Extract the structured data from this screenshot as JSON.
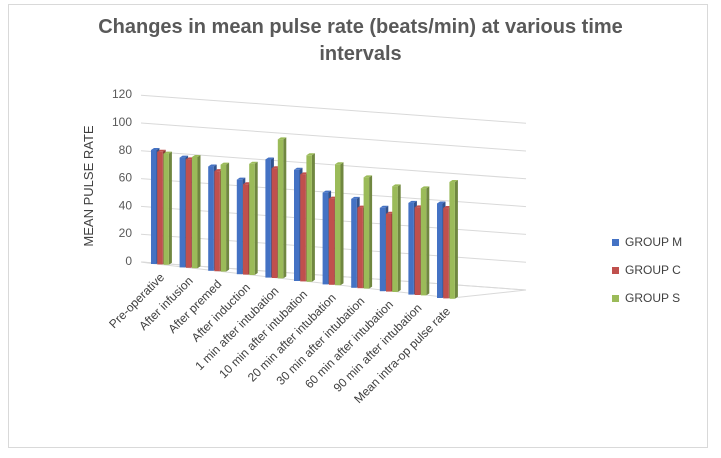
{
  "chart_data": {
    "type": "bar",
    "title_lines": [
      "Changes in mean pulse rate (beats/min) at various time",
      "intervals"
    ],
    "xlabel": "",
    "ylabel": "MEAN PULSE RATE",
    "ylim": [
      0,
      120
    ],
    "yticks": [
      "0",
      "20",
      "40",
      "60",
      "80",
      "100",
      "120"
    ],
    "grid": true,
    "legend_position": "right",
    "categories": [
      "Pre-operative",
      "After infusion",
      "After premed",
      "After induction",
      "1 min after intubation",
      "10 min after intubation",
      "20 min after intubation",
      "30 min after intubation",
      "60 min after intubation",
      "90 min after intubation",
      "Mean intra-op pulse rate"
    ],
    "series": [
      {
        "name": "GROUP M",
        "color": "#4472c4",
        "values": [
          82,
          79,
          75,
          68,
          85,
          80,
          66,
          64,
          60,
          66,
          68
        ]
      },
      {
        "name": "GROUP C",
        "color": "#c0504d",
        "values": [
          81,
          78,
          72,
          65,
          79,
          77,
          62,
          58,
          56,
          63,
          65
        ]
      },
      {
        "name": "GROUP S",
        "color": "#9bbb59",
        "values": [
          80,
          80,
          77,
          80,
          100,
          91,
          87,
          80,
          76,
          77,
          84
        ]
      }
    ]
  }
}
